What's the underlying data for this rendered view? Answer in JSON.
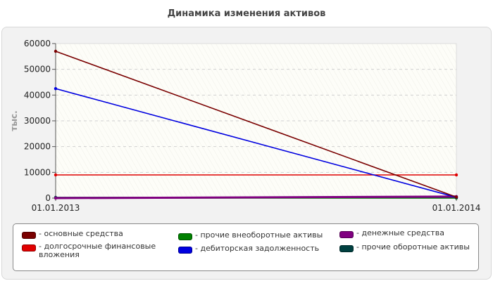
{
  "chart_data": {
    "type": "line",
    "title": "Динамика изменения активов",
    "ylabel": "тыс.",
    "xlabel": "",
    "x": [
      "01.01.2013",
      "01.01.2014"
    ],
    "ylim": [
      0,
      60000
    ],
    "yticks": [
      "0",
      "10000",
      "20000",
      "30000",
      "40000",
      "50000",
      "60000"
    ],
    "grid": true,
    "legend_position": "bottom",
    "series": [
      {
        "name": "- основные средства",
        "color": "#7a0000",
        "values": [
          57000,
          400
        ]
      },
      {
        "name": "- долгосрочные финансовые вложения",
        "color": "#e00000",
        "values": [
          9000,
          9000
        ]
      },
      {
        "name": "- прочие внеоборотные активы",
        "color": "#008000",
        "values": [
          0,
          0
        ]
      },
      {
        "name": "- дебиторская задолженность",
        "color": "#0000e0",
        "values": [
          42500,
          300
        ]
      },
      {
        "name": "- денежные средства",
        "color": "#800080",
        "values": [
          0,
          600
        ]
      },
      {
        "name": "- прочие оборотные активы",
        "color": "#004040",
        "values": [
          300,
          300
        ]
      }
    ]
  }
}
